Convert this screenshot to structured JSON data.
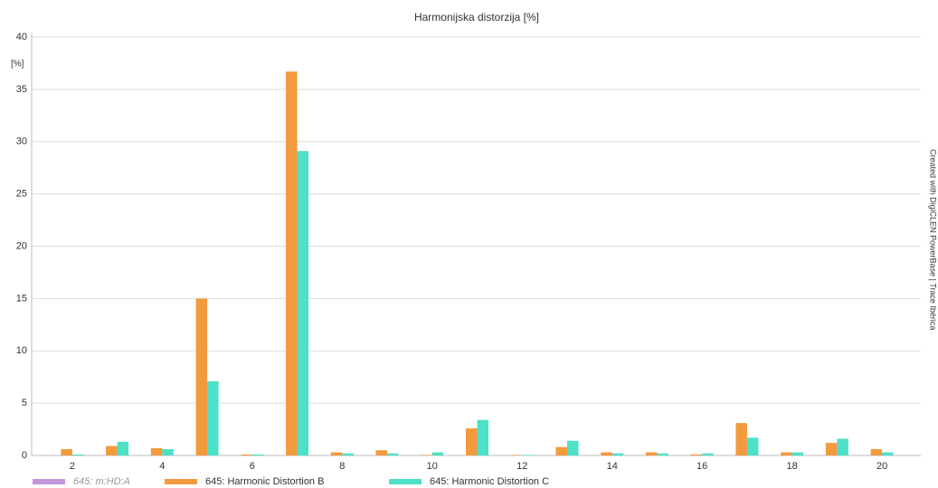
{
  "chart_data": {
    "type": "bar",
    "title": "Harmonijska distorzija [%]",
    "y_label": "[%]",
    "credit": "Created with DigiCLEN PowerBase | Trace Ibérica",
    "categories": [
      "2",
      null,
      "4",
      null,
      "6",
      null,
      "8",
      null,
      "10",
      null,
      "12",
      null,
      "14",
      null,
      "16",
      null,
      "18",
      null,
      "20"
    ],
    "series": [
      {
        "name": "645: m:HD:A",
        "color": "#c08ad8",
        "hidden": true,
        "values": [
          null,
          null,
          null,
          null,
          null,
          null,
          null,
          null,
          null,
          null,
          null,
          null,
          null,
          null,
          null,
          null,
          null,
          null,
          null
        ]
      },
      {
        "name": "645: Harmonic Distortion B",
        "color": "#f39a3e",
        "values": [
          0.6,
          0.9,
          0.7,
          15.0,
          0.1,
          36.7,
          0.3,
          0.5,
          0.05,
          2.6,
          0.05,
          0.8,
          0.3,
          0.3,
          0.1,
          3.1,
          0.3,
          1.2,
          0.6
        ]
      },
      {
        "name": "645: Harmonic Distortion C",
        "color": "#4fe0c8",
        "values": [
          0.1,
          1.3,
          0.6,
          7.1,
          0.1,
          29.1,
          0.2,
          0.2,
          0.3,
          3.4,
          0.05,
          1.4,
          0.2,
          0.2,
          0.2,
          1.7,
          0.3,
          1.6,
          0.3
        ]
      }
    ],
    "ylim": [
      0,
      40
    ],
    "yticks": [
      0,
      5,
      10,
      15,
      20,
      25,
      30,
      35,
      40
    ],
    "grid": true
  }
}
